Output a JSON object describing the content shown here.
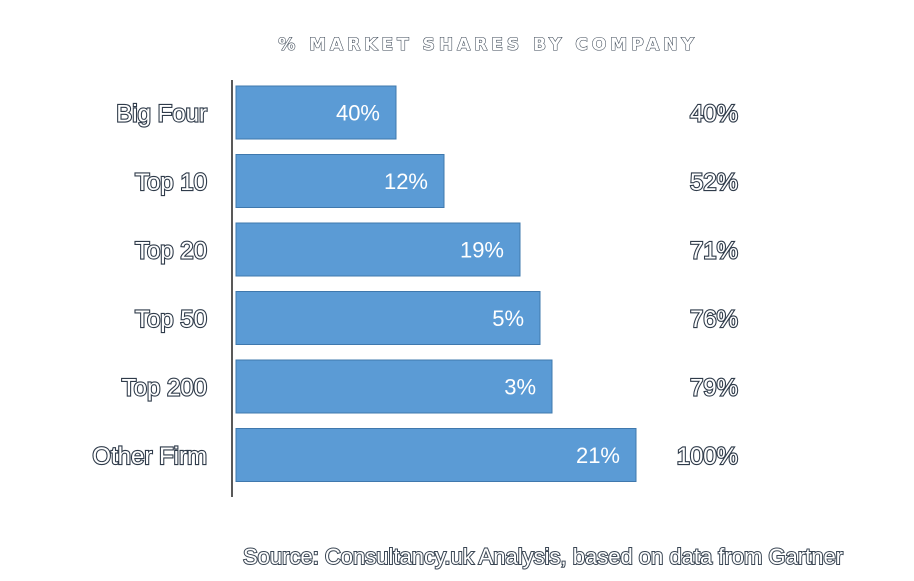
{
  "chart_data": {
    "type": "bar",
    "orientation": "horizontal",
    "stacked": "waterfall",
    "title": "% MARKET SHARES BY COMPANY",
    "categories": [
      "Big Four",
      "Top 10",
      "Top 20",
      "Top 50",
      "Top 200",
      "Other Firm"
    ],
    "values": [
      40,
      12,
      19,
      5,
      3,
      21
    ],
    "bar_labels": [
      "40%",
      "12%",
      "19%",
      "5%",
      "3%",
      "21%"
    ],
    "cumulative": [
      40,
      52,
      71,
      76,
      79,
      100
    ],
    "cumulative_labels": [
      "40%",
      "52%",
      "71%",
      "76%",
      "79%",
      "100%"
    ],
    "xlim": [
      0,
      100
    ],
    "grid": false,
    "legend": "none",
    "colors": {
      "bar": "#5b9bd5",
      "bar_border": "#3f78ad",
      "axis": "#595959"
    }
  },
  "source": "Source: Consultancy.uk Analysis, based on data from Gartner"
}
